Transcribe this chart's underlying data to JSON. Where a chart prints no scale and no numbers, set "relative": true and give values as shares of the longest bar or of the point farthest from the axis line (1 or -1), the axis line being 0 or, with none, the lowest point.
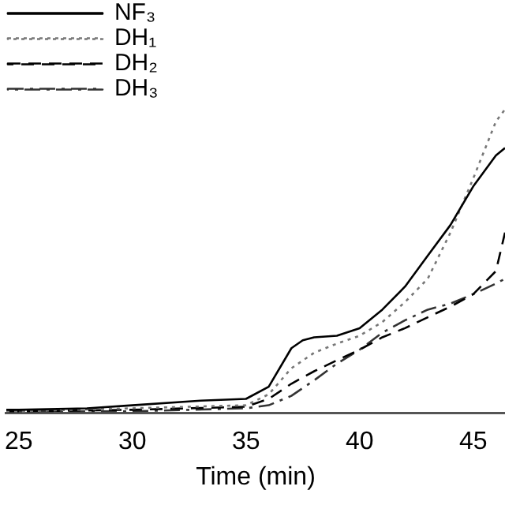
{
  "chart_data": {
    "type": "line",
    "xlabel": "Time (min)",
    "relative": true,
    "xlim": [
      24.45,
      46.4
    ],
    "xticks": [
      25,
      30,
      35,
      40,
      45
    ],
    "legend": "top left",
    "grid": false,
    "marker": "none",
    "series": [
      {
        "name": "NF₃",
        "color": "#000000",
        "line_style": "solid",
        "x": [
          24.45,
          25,
          28,
          30,
          33,
          35,
          36,
          37,
          37.5,
          38,
          39,
          40,
          41,
          42,
          43,
          44,
          45,
          46,
          46.4
        ],
        "values": [
          0.01,
          0.01,
          0.015,
          0.025,
          0.04,
          0.046,
          0.086,
          0.213,
          0.239,
          0.249,
          0.254,
          0.279,
          0.34,
          0.416,
          0.518,
          0.619,
          0.746,
          0.848,
          0.873
        ]
      },
      {
        "name": "DH₁",
        "color": "#777777",
        "line_style": "dotted",
        "x": [
          24.45,
          25,
          30,
          35,
          36,
          37,
          38,
          39,
          40,
          41,
          42,
          43,
          44,
          45,
          46,
          46.4
        ],
        "values": [
          0.005,
          0.005,
          0.015,
          0.025,
          0.061,
          0.147,
          0.198,
          0.228,
          0.254,
          0.299,
          0.365,
          0.442,
          0.594,
          0.772,
          0.96,
          1
        ]
      },
      {
        "name": "DH₂",
        "color": "#000000",
        "line_style": "dashed",
        "x": [
          24.45,
          25,
          30,
          35,
          36,
          37,
          38,
          39,
          40,
          41,
          42,
          43,
          44,
          45,
          46,
          46.4
        ],
        "values": [
          0.005,
          0.005,
          0.01,
          0.02,
          0.046,
          0.096,
          0.137,
          0.173,
          0.208,
          0.249,
          0.279,
          0.315,
          0.35,
          0.391,
          0.467,
          0.594
        ]
      },
      {
        "name": "DH₃",
        "color": "#333333",
        "line_style": "dashdot",
        "x": [
          24.45,
          25,
          30,
          35,
          36,
          37,
          38,
          39,
          40,
          41,
          42,
          43,
          44,
          45,
          46,
          46.4
        ],
        "values": [
          0.005,
          0.005,
          0.005,
          0.015,
          0.025,
          0.056,
          0.107,
          0.162,
          0.208,
          0.264,
          0.305,
          0.34,
          0.36,
          0.391,
          0.426,
          0.442
        ]
      }
    ]
  }
}
